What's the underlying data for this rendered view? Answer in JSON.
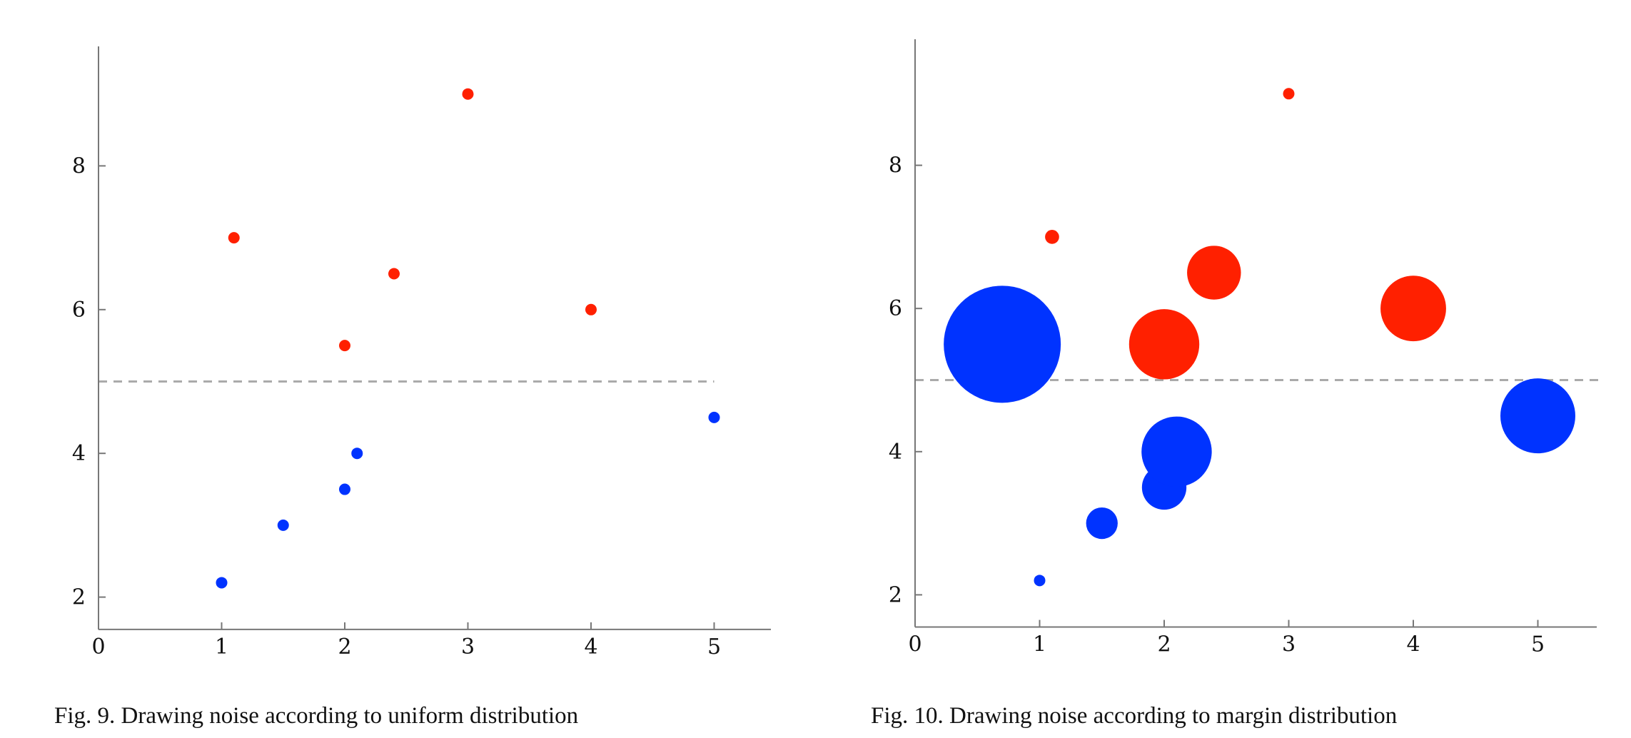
{
  "colors": {
    "red": "#ff2000",
    "blue": "#0033ff",
    "axis": "#777777",
    "dashed_line": "#aaaaaa"
  },
  "captions": {
    "left": "Fig. 9.  Drawing noise according to uniform distribution",
    "right": "Fig. 10.  Drawing noise according to margin distribution"
  },
  "chart_data": [
    {
      "type": "scatter",
      "title": "",
      "xlabel": "",
      "ylabel": "",
      "xlim": [
        0,
        5.5
      ],
      "ylim": [
        1.55,
        9.65
      ],
      "xticks": [
        0,
        1,
        2,
        3,
        4,
        5
      ],
      "yticks": [
        2,
        4,
        6,
        8
      ],
      "grid": false,
      "dashed_line_y": 5,
      "dashed_line_x": [
        0,
        5
      ],
      "series": [
        {
          "color": "red",
          "points": [
            {
              "x": 1.1,
              "y": 7.0
            },
            {
              "x": 2.4,
              "y": 6.5
            },
            {
              "x": 2.0,
              "y": 5.5
            },
            {
              "x": 3.0,
              "y": 9.0
            },
            {
              "x": 4.0,
              "y": 6.0
            }
          ]
        },
        {
          "color": "blue",
          "points": [
            {
              "x": 1.0,
              "y": 2.2
            },
            {
              "x": 1.5,
              "y": 3.0
            },
            {
              "x": 2.0,
              "y": 3.5
            },
            {
              "x": 2.1,
              "y": 4.0
            },
            {
              "x": 5.0,
              "y": 4.5
            }
          ]
        }
      ]
    },
    {
      "type": "scatter",
      "title": "",
      "xlabel": "",
      "ylabel": "",
      "xlim": [
        0,
        5.5
      ],
      "ylim": [
        1.55,
        9.65
      ],
      "xticks": [
        0,
        1,
        2,
        3,
        4,
        5
      ],
      "yticks": [
        2,
        4,
        6,
        8
      ],
      "grid": false,
      "dashed_line_y": 5,
      "dashed_line_x": [
        0,
        5.5
      ],
      "series": [
        {
          "color": "red",
          "points": [
            {
              "x": 1.1,
              "y": 7.0,
              "size": 0.12
            },
            {
              "x": 2.4,
              "y": 6.5,
              "size": 0.46
            },
            {
              "x": 2.0,
              "y": 5.5,
              "size": 0.6
            },
            {
              "x": 3.0,
              "y": 9.0,
              "size": 0.07
            },
            {
              "x": 4.0,
              "y": 6.0,
              "size": 0.56
            }
          ]
        },
        {
          "color": "blue",
          "points": [
            {
              "x": 0.7,
              "y": 5.5,
              "size": 1.0
            },
            {
              "x": 1.0,
              "y": 2.2,
              "size": 0.08
            },
            {
              "x": 1.5,
              "y": 3.0,
              "size": 0.27
            },
            {
              "x": 2.0,
              "y": 3.5,
              "size": 0.38
            },
            {
              "x": 2.1,
              "y": 4.0,
              "size": 0.6
            },
            {
              "x": 5.0,
              "y": 4.5,
              "size": 0.64
            }
          ]
        }
      ]
    }
  ]
}
